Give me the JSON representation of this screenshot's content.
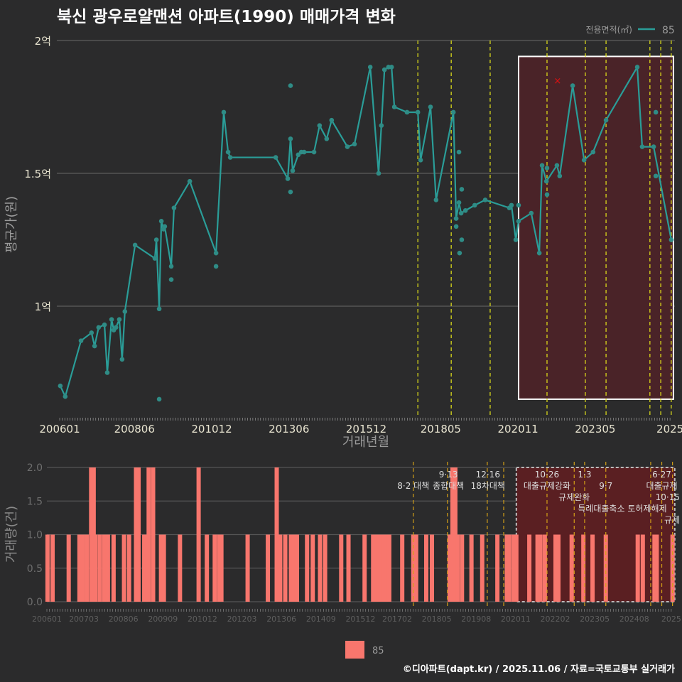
{
  "title": "북신 광우로얄맨션 아파트(1990) 매매가격 변화",
  "footer": "©디아파트(dapt.kr) / 2025.11.06 / 자료=국토교통부 실거래가",
  "colors": {
    "line": "#2a9d98",
    "point": "#2f8c86",
    "bar": "#f8766d",
    "policy_top": "#e6e619",
    "policy_bottom": "#d4a017",
    "highlight": "#4a2328",
    "highlight_bottom": "#5a1f22",
    "outlier": "#e01010"
  },
  "chart_data": [
    {
      "type": "line",
      "title": "북신 광우로얄맨션 아파트(1990) 매매가격 변화",
      "xlabel": "거래년월",
      "ylabel": "평균가(원)",
      "legend_title": "전용면적(㎡)",
      "legend": [
        "85"
      ],
      "legend_placement": "top-right",
      "xlim": [
        2005.9,
        2025.86
      ],
      "ylim": [
        0.58,
        2.03
      ],
      "y_unit": "억",
      "yticks": [
        {
          "v": 1,
          "label": "1억"
        },
        {
          "v": 1.5,
          "label": "1.5억"
        },
        {
          "v": 2,
          "label": "2억"
        }
      ],
      "xticks": [
        {
          "v": 2006.0,
          "label": "200601"
        },
        {
          "v": 2008.42,
          "label": "200806"
        },
        {
          "v": 2010.92,
          "label": "201012"
        },
        {
          "v": 2013.42,
          "label": "201306"
        },
        {
          "v": 2015.92,
          "label": "201512"
        },
        {
          "v": 2018.33,
          "label": "201805"
        },
        {
          "v": 2020.83,
          "label": "202011"
        },
        {
          "v": 2023.33,
          "label": "202305"
        },
        {
          "v": 2025.75,
          "label": "2025"
        }
      ],
      "series": [
        {
          "name": "85",
          "points": [
            [
              2006.02,
              0.7
            ],
            [
              2006.18,
              0.66
            ],
            [
              2006.69,
              0.87
            ],
            [
              2007.03,
              0.9
            ],
            [
              2007.13,
              0.85
            ],
            [
              2007.26,
              0.92
            ],
            [
              2007.45,
              0.93
            ],
            [
              2007.54,
              0.75
            ],
            [
              2007.68,
              0.95
            ],
            [
              2007.75,
              0.91
            ],
            [
              2007.82,
              0.92
            ],
            [
              2007.93,
              0.95
            ],
            [
              2008.02,
              0.8
            ],
            [
              2008.11,
              0.98
            ],
            [
              2008.44,
              1.23
            ],
            [
              2009.08,
              1.18
            ],
            [
              2009.13,
              1.25
            ],
            [
              2009.22,
              0.99
            ],
            [
              2009.29,
              1.32
            ],
            [
              2009.36,
              1.29
            ],
            [
              2009.4,
              1.3
            ],
            [
              2009.61,
              1.15
            ],
            [
              2009.7,
              1.37
            ],
            [
              2010.21,
              1.47
            ],
            [
              2011.06,
              1.2
            ],
            [
              2011.31,
              1.73
            ],
            [
              2011.45,
              1.58
            ],
            [
              2011.52,
              1.56
            ],
            [
              2012.99,
              1.56
            ],
            [
              2013.38,
              1.48
            ],
            [
              2013.47,
              1.63
            ],
            [
              2013.54,
              1.51
            ],
            [
              2013.72,
              1.57
            ],
            [
              2013.82,
              1.58
            ],
            [
              2013.91,
              1.58
            ],
            [
              2014.23,
              1.58
            ],
            [
              2014.41,
              1.68
            ],
            [
              2014.64,
              1.63
            ],
            [
              2014.8,
              1.7
            ],
            [
              2015.31,
              1.6
            ],
            [
              2015.54,
              1.61
            ],
            [
              2016.05,
              1.9
            ],
            [
              2016.32,
              1.5
            ],
            [
              2016.41,
              1.68
            ],
            [
              2016.51,
              1.89
            ],
            [
              2016.64,
              1.9
            ],
            [
              2016.74,
              1.9
            ],
            [
              2016.83,
              1.75
            ],
            [
              2017.24,
              1.73
            ],
            [
              2017.59,
              1.73
            ],
            [
              2017.68,
              1.55
            ],
            [
              2018.0,
              1.75
            ],
            [
              2018.18,
              1.4
            ],
            [
              2018.74,
              1.73
            ],
            [
              2018.83,
              1.33
            ],
            [
              2018.92,
              1.39
            ],
            [
              2018.99,
              1.35
            ],
            [
              2019.13,
              1.36
            ],
            [
              2019.43,
              1.38
            ],
            [
              2019.77,
              1.4
            ],
            [
              2020.55,
              1.37
            ],
            [
              2020.62,
              1.38
            ],
            [
              2020.76,
              1.25
            ],
            [
              2020.85,
              1.32
            ],
            [
              2021.26,
              1.35
            ],
            [
              2021.52,
              1.2
            ],
            [
              2021.61,
              1.53
            ],
            [
              2021.75,
              1.47
            ],
            [
              2022.09,
              1.53
            ],
            [
              2022.18,
              1.49
            ],
            [
              2022.6,
              1.83
            ],
            [
              2022.97,
              1.55
            ],
            [
              2023.26,
              1.58
            ],
            [
              2023.68,
              1.7
            ],
            [
              2024.69,
              1.9
            ],
            [
              2024.85,
              1.6
            ],
            [
              2025.22,
              1.6
            ],
            [
              2025.79,
              1.25
            ]
          ]
        }
      ],
      "individual_points": [
        [
          2013.47,
          1.83
        ],
        [
          2013.47,
          1.43
        ],
        [
          2009.22,
          0.65
        ],
        [
          2009.61,
          1.1
        ],
        [
          2011.06,
          1.15
        ],
        [
          2018.92,
          1.58
        ],
        [
          2019.01,
          1.44
        ],
        [
          2018.94,
          1.2
        ],
        [
          2019.01,
          1.25
        ],
        [
          2018.83,
          1.3
        ],
        [
          2020.85,
          1.38
        ],
        [
          2021.77,
          1.52
        ],
        [
          2021.77,
          1.42
        ],
        [
          2025.29,
          1.73
        ],
        [
          2025.29,
          1.49
        ]
      ],
      "outlier_marks": [
        [
          2022.11,
          1.85
        ]
      ],
      "policy_lines": [
        2017.59,
        2018.67,
        2019.93,
        2021.77,
        2023.01,
        2023.68,
        2025.1,
        2025.45,
        2025.79
      ],
      "highlight_range": {
        "x": [
          2020.85,
          2025.86
        ],
        "y": [
          0.65,
          1.94
        ]
      }
    },
    {
      "type": "bar",
      "xlabel": "",
      "ylabel": "거래량(건)",
      "legend": [
        "85"
      ],
      "legend_placement": "bottom",
      "xlim": [
        2005.9,
        2025.86
      ],
      "ylim": [
        0,
        2
      ],
      "yticks": [
        {
          "v": 0,
          "label": "0.0"
        },
        {
          "v": 0.5,
          "label": "0.5"
        },
        {
          "v": 1,
          "label": "1.0"
        },
        {
          "v": 1.5,
          "label": "1.5"
        },
        {
          "v": 2,
          "label": "2.0"
        }
      ],
      "xticks": [
        {
          "v": 2006.0,
          "label": "200601"
        },
        {
          "v": 2007.17,
          "label": "200703"
        },
        {
          "v": 2008.42,
          "label": "200806"
        },
        {
          "v": 2009.67,
          "label": "200909"
        },
        {
          "v": 2010.92,
          "label": "201012"
        },
        {
          "v": 2012.17,
          "label": "201203"
        },
        {
          "v": 2013.42,
          "label": "201306"
        },
        {
          "v": 2014.67,
          "label": "201409"
        },
        {
          "v": 2015.92,
          "label": "201512"
        },
        {
          "v": 2017.08,
          "label": "201702"
        },
        {
          "v": 2018.33,
          "label": "201805"
        },
        {
          "v": 2019.58,
          "label": "201908"
        },
        {
          "v": 2020.83,
          "label": "202011"
        },
        {
          "v": 2022.08,
          "label": "202202"
        },
        {
          "v": 2023.33,
          "label": "202305"
        },
        {
          "v": 2024.58,
          "label": "202408"
        },
        {
          "v": 2025.75,
          "label": "2025"
        }
      ],
      "bars": [
        [
          2006.02,
          1
        ],
        [
          2006.18,
          1
        ],
        [
          2006.69,
          1
        ],
        [
          2007.03,
          1
        ],
        [
          2007.13,
          1
        ],
        [
          2007.26,
          1
        ],
        [
          2007.4,
          2
        ],
        [
          2007.48,
          2
        ],
        [
          2007.54,
          1
        ],
        [
          2007.68,
          1
        ],
        [
          2007.82,
          1
        ],
        [
          2007.93,
          1
        ],
        [
          2008.11,
          1
        ],
        [
          2008.44,
          1
        ],
        [
          2008.6,
          1
        ],
        [
          2008.82,
          2
        ],
        [
          2008.9,
          2
        ],
        [
          2009.08,
          1
        ],
        [
          2009.13,
          1
        ],
        [
          2009.22,
          2
        ],
        [
          2009.36,
          2
        ],
        [
          2009.61,
          1
        ],
        [
          2009.7,
          1
        ],
        [
          2010.21,
          1
        ],
        [
          2010.8,
          2
        ],
        [
          2011.06,
          1
        ],
        [
          2011.31,
          1
        ],
        [
          2011.45,
          1
        ],
        [
          2011.52,
          1
        ],
        [
          2012.35,
          1
        ],
        [
          2012.99,
          1
        ],
        [
          2013.27,
          2
        ],
        [
          2013.38,
          1
        ],
        [
          2013.54,
          1
        ],
        [
          2013.72,
          1
        ],
        [
          2013.82,
          1
        ],
        [
          2013.91,
          1
        ],
        [
          2014.23,
          1
        ],
        [
          2014.41,
          1
        ],
        [
          2014.64,
          1
        ],
        [
          2014.8,
          1
        ],
        [
          2015.31,
          1
        ],
        [
          2015.54,
          1
        ],
        [
          2016.05,
          1
        ],
        [
          2016.32,
          1
        ],
        [
          2016.41,
          1
        ],
        [
          2016.51,
          1
        ],
        [
          2016.64,
          1
        ],
        [
          2016.74,
          1
        ],
        [
          2016.83,
          1
        ],
        [
          2017.24,
          1
        ],
        [
          2017.59,
          1
        ],
        [
          2017.68,
          1
        ],
        [
          2018.0,
          1
        ],
        [
          2018.18,
          1
        ],
        [
          2018.74,
          1
        ],
        [
          2018.83,
          2
        ],
        [
          2018.92,
          2
        ],
        [
          2018.99,
          1
        ],
        [
          2019.13,
          1
        ],
        [
          2019.43,
          1
        ],
        [
          2019.77,
          1
        ],
        [
          2020.25,
          1
        ],
        [
          2020.55,
          1
        ],
        [
          2020.62,
          1
        ],
        [
          2020.76,
          1
        ],
        [
          2020.85,
          1
        ],
        [
          2021.26,
          1
        ],
        [
          2021.52,
          1
        ],
        [
          2021.61,
          1
        ],
        [
          2021.75,
          1
        ],
        [
          2022.09,
          1
        ],
        [
          2022.18,
          1
        ],
        [
          2022.6,
          1
        ],
        [
          2022.97,
          1
        ],
        [
          2023.26,
          1
        ],
        [
          2023.68,
          1
        ],
        [
          2024.69,
          1
        ],
        [
          2024.85,
          1
        ],
        [
          2025.22,
          1
        ],
        [
          2025.29,
          1
        ],
        [
          2025.79,
          1
        ]
      ],
      "policy_lines": [
        2017.59,
        2018.67,
        2019.93,
        2020.45,
        2021.82,
        2022.68,
        2023.01,
        2023.68,
        2025.1,
        2025.45,
        2025.79
      ],
      "highlight_range": {
        "x": [
          2020.85,
          2025.86
        ],
        "y": [
          0,
          2
        ]
      },
      "annotations": [
        {
          "x": 2017.59,
          "row": 1,
          "text": "8·2 대책"
        },
        {
          "x": 2018.7,
          "row": 0,
          "text": "9·13"
        },
        {
          "x": 2018.7,
          "row": 1,
          "text": "종합대책"
        },
        {
          "x": 2019.95,
          "row": 0,
          "text": "12·16"
        },
        {
          "x": 2019.95,
          "row": 1,
          "text": "18차대책"
        },
        {
          "x": 2021.82,
          "row": 0,
          "text": "10·26"
        },
        {
          "x": 2021.82,
          "row": 1,
          "text": "대출규제강화"
        },
        {
          "x": 2023.01,
          "row": 0,
          "text": "1·3"
        },
        {
          "x": 2022.68,
          "row": 1,
          "text": "규제완화"
        },
        {
          "x": 2023.68,
          "row": 1,
          "text": "9·7"
        },
        {
          "x": 2024.2,
          "row": 2,
          "text": "특례대출축소 토허제해제"
        },
        {
          "x": 2025.45,
          "row": 0,
          "text": "6·27"
        },
        {
          "x": 2025.45,
          "row": 1,
          "text": "대출규제"
        },
        {
          "x": 2025.79,
          "row": 0,
          "text": "10·15"
        },
        {
          "x": 2025.79,
          "row": 1,
          "text": "규제"
        }
      ]
    }
  ]
}
